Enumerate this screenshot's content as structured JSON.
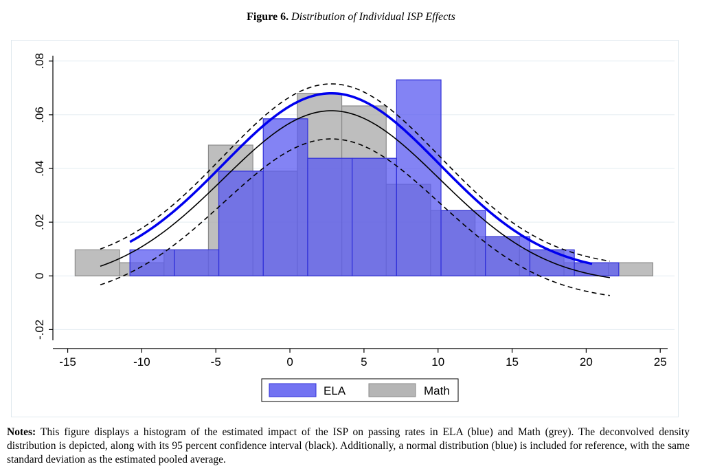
{
  "figure": {
    "label": "Figure 6.",
    "title": "Distribution of Individual ISP Effects"
  },
  "notes": {
    "label": "Notes:",
    "text": "This figure displays a histogram of the estimated impact of the ISP on passing rates in ELA (blue) and Math (grey). The deconvolved density distribution is depicted, along with its 95 percent confidence interval (black). Additionally, a normal distribution (blue) is included for reference, with the same standard deviation as the estimated pooled average."
  },
  "chart_data": {
    "type": "bar",
    "xlim": [
      -16,
      25.5
    ],
    "ylim": [
      -0.024,
      0.082
    ],
    "x_ticks": [
      -15,
      -10,
      -5,
      0,
      5,
      10,
      15,
      20,
      25
    ],
    "x_tick_labels": [
      "-15",
      "-10",
      "-5",
      "0",
      "5",
      "10",
      "15",
      "20",
      "25"
    ],
    "y_ticks": [
      -0.02,
      0,
      0.02,
      0.04,
      0.06,
      0.08
    ],
    "y_tick_labels": [
      "-.02",
      "0",
      ".02",
      ".04",
      ".06",
      ".08"
    ],
    "grid": true,
    "legend_position": "bottom-center",
    "colors": {
      "ela_fill": "#5a5af0",
      "ela_edge": "#3030d8",
      "math_fill": "#a8a8a8",
      "math_edge": "#8a8a8a",
      "normal_curve": "#0000ee",
      "density_curve": "#000000"
    },
    "series": [
      {
        "name": "ELA",
        "bins": [
          {
            "x0": -10.8,
            "x1": -7.8,
            "y": 0.0097
          },
          {
            "x0": -7.8,
            "x1": -4.8,
            "y": 0.0097
          },
          {
            "x0": -4.8,
            "x1": -1.8,
            "y": 0.039
          },
          {
            "x0": -1.8,
            "x1": 1.2,
            "y": 0.0585
          },
          {
            "x0": 1.2,
            "x1": 4.2,
            "y": 0.0438
          },
          {
            "x0": 4.2,
            "x1": 7.2,
            "y": 0.0438
          },
          {
            "x0": 7.2,
            "x1": 10.2,
            "y": 0.073
          },
          {
            "x0": 10.2,
            "x1": 13.2,
            "y": 0.0243
          },
          {
            "x0": 13.2,
            "x1": 16.2,
            "y": 0.0146
          },
          {
            "x0": 16.2,
            "x1": 19.2,
            "y": 0.0097
          },
          {
            "x0": 19.2,
            "x1": 22.2,
            "y": 0.0049
          }
        ]
      },
      {
        "name": "Math",
        "bins": [
          {
            "x0": -14.5,
            "x1": -11.5,
            "y": 0.0097
          },
          {
            "x0": -11.5,
            "x1": -8.5,
            "y": 0.0049
          },
          {
            "x0": -8.5,
            "x1": -5.5,
            "y": 0.0097
          },
          {
            "x0": -5.5,
            "x1": -2.5,
            "y": 0.0487
          },
          {
            "x0": -2.5,
            "x1": 0.5,
            "y": 0.039
          },
          {
            "x0": 0.5,
            "x1": 3.5,
            "y": 0.068
          },
          {
            "x0": 3.5,
            "x1": 6.5,
            "y": 0.0633
          },
          {
            "x0": 6.5,
            "x1": 9.5,
            "y": 0.0341
          },
          {
            "x0": 9.5,
            "x1": 12.5,
            "y": 0.0243
          },
          {
            "x0": 12.5,
            "x1": 15.5,
            "y": 0.0146
          },
          {
            "x0": 15.5,
            "x1": 18.5,
            "y": 0.0097
          },
          {
            "x0": 18.5,
            "x1": 21.5,
            "y": 0.0049
          },
          {
            "x0": 21.5,
            "x1": 24.5,
            "y": 0.0049
          }
        ]
      }
    ],
    "curves": [
      {
        "role": "normal",
        "style": "solid-thick",
        "x_range": [
          -10.8,
          20.4
        ],
        "peak_x": 2.8,
        "peak_y": 0.068,
        "tail_y": 0.0008
      },
      {
        "role": "density",
        "style": "solid",
        "x_range": [
          -12.8,
          21.6
        ],
        "peak_x": 2.8,
        "peak_y": 0.0615,
        "tail_y": -0.003
      },
      {
        "role": "ci_upper",
        "style": "dashed",
        "x_range": [
          -12.8,
          21.6
        ],
        "peak_x": 2.8,
        "peak_y": 0.0715,
        "tail_y": 0.003
      },
      {
        "role": "ci_lower",
        "style": "dashed",
        "x_range": [
          -12.8,
          21.6
        ],
        "peak_x": 2.8,
        "peak_y": 0.051,
        "tail_y": -0.0095
      }
    ]
  }
}
